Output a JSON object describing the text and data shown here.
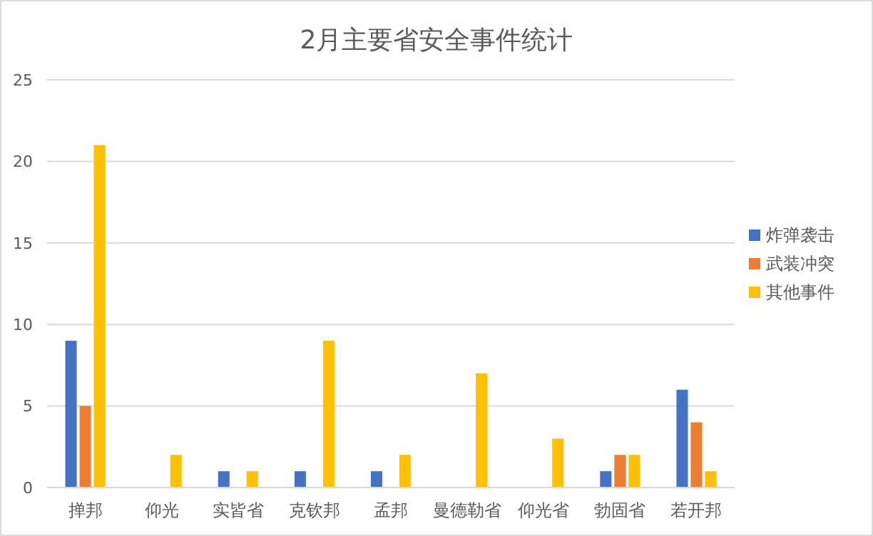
{
  "chart_data": {
    "type": "bar",
    "title": "2月主要省安全事件统计",
    "categories": [
      "掸邦",
      "仰光",
      "实皆省",
      "克钦邦",
      "孟邦",
      "曼德勒省",
      "仰光省",
      "勃固省",
      "若开邦"
    ],
    "series": [
      {
        "name": "炸弹袭击",
        "color": "#4472c4",
        "values": [
          9,
          0,
          1,
          1,
          1,
          0,
          0,
          1,
          6
        ]
      },
      {
        "name": "武装冲突",
        "color": "#ed7d31",
        "values": [
          5,
          0,
          0,
          0,
          0,
          0,
          0,
          2,
          4
        ]
      },
      {
        "name": "其他事件",
        "color": "#ffc000",
        "values": [
          21,
          2,
          1,
          9,
          2,
          7,
          3,
          2,
          1
        ]
      }
    ],
    "ylim": [
      0,
      25
    ],
    "yticks": [
      0,
      5,
      10,
      15,
      20,
      25
    ],
    "grid": "y",
    "legend": "right"
  }
}
